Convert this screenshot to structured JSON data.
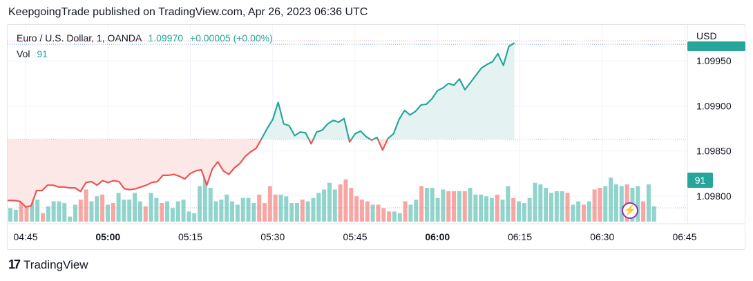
{
  "header": {
    "text": "KeepgoingTrade published on TradingView.com, Apr 26, 2023 06:36 UTC"
  },
  "legend": {
    "symbol": "Euro / U.S. Dollar, 1, OANDA",
    "price": "1.09970",
    "change": "+0.00005 (+0.00%)",
    "vol_label": "Vol",
    "vol_value": "91"
  },
  "axis": {
    "currency": "USD",
    "vol_tag": "91"
  },
  "footer": {
    "brand": "TradingView"
  },
  "colors": {
    "up": "#26a69a",
    "down": "#ef5350",
    "vol_up": "#90d4cc",
    "vol_down": "#f7a6a4",
    "up_fill": "#e4f3f1",
    "down_fill": "#fde8e8"
  },
  "chart_data": {
    "type": "line",
    "title": "",
    "ylabel": "",
    "ylim": [
      1.0977,
      1.0999
    ],
    "baseline": 1.09863,
    "y_ticks": [
      "1.09950",
      "1.09900",
      "1.09850",
      "1.09800"
    ],
    "x_ticks": [
      {
        "label": "04:45",
        "bold": false,
        "m": 0
      },
      {
        "label": "05:00",
        "bold": true,
        "m": 15
      },
      {
        "label": "05:15",
        "bold": false,
        "m": 30
      },
      {
        "label": "05:30",
        "bold": false,
        "m": 45
      },
      {
        "label": "05:45",
        "bold": false,
        "m": 60
      },
      {
        "label": "06:00",
        "bold": true,
        "m": 75
      },
      {
        "label": "06:15",
        "bold": false,
        "m": 90
      },
      {
        "label": "06:30",
        "bold": false,
        "m": 105
      },
      {
        "label": "06:45",
        "bold": false,
        "m": 120
      }
    ],
    "price_start_minute": -2,
    "price": [
      1.09795,
      1.09794,
      1.09788,
      1.09789,
      1.09806,
      1.09806,
      1.09812,
      1.09812,
      1.0981,
      1.0981,
      1.09809,
      1.09809,
      1.09805,
      1.09815,
      1.09816,
      1.09812,
      1.09817,
      1.09815,
      1.09817,
      1.09816,
      1.09808,
      1.09807,
      1.09808,
      1.0981,
      1.09812,
      1.09815,
      1.09816,
      1.09823,
      1.09823,
      1.09824,
      1.09822,
      1.09819,
      1.09825,
      1.09828,
      1.09829,
      1.09812,
      1.0983,
      1.09838,
      1.09828,
      1.09824,
      1.09831,
      1.09836,
      1.09844,
      1.09849,
      1.09853,
      1.09864,
      1.09875,
      1.09885,
      1.09904,
      1.0988,
      1.09878,
      1.09867,
      1.09871,
      1.0987,
      1.09858,
      1.09871,
      1.09873,
      1.0988,
      1.09884,
      1.09882,
      1.09886,
      1.0986,
      1.09869,
      1.09872,
      1.09866,
      1.09862,
      1.09865,
      1.09851,
      1.09864,
      1.09869,
      1.09885,
      1.09895,
      1.0989,
      1.09894,
      1.09901,
      1.09902,
      1.09908,
      1.09917,
      1.0992,
      1.09925,
      1.09923,
      1.0993,
      1.09918,
      1.09926,
      1.09934,
      1.09942,
      1.09946,
      1.09949,
      1.09958,
      1.09945,
      1.09966,
      1.0997
    ],
    "volume_max": 30,
    "volume": [
      {
        "v": 8,
        "up": true
      },
      {
        "v": 7,
        "up": true
      },
      {
        "v": 12,
        "up": false
      },
      {
        "v": 13,
        "up": false
      },
      {
        "v": 12,
        "up": true
      },
      {
        "v": 13,
        "up": true
      },
      {
        "v": 5,
        "up": false
      },
      {
        "v": 9,
        "up": true
      },
      {
        "v": 12,
        "up": true
      },
      {
        "v": 12,
        "up": true
      },
      {
        "v": 11,
        "up": true
      },
      {
        "v": 3,
        "up": true
      },
      {
        "v": 10,
        "up": true
      },
      {
        "v": 13,
        "up": false
      },
      {
        "v": 19,
        "up": false
      },
      {
        "v": 12,
        "up": true
      },
      {
        "v": 15,
        "up": true
      },
      {
        "v": 16,
        "up": false
      },
      {
        "v": 10,
        "up": true
      },
      {
        "v": 11,
        "up": false
      },
      {
        "v": 17,
        "up": true
      },
      {
        "v": 13,
        "up": true
      },
      {
        "v": 13,
        "up": true
      },
      {
        "v": 17,
        "up": true
      },
      {
        "v": 12,
        "up": true
      },
      {
        "v": 9,
        "up": false
      },
      {
        "v": 17,
        "up": true
      },
      {
        "v": 14,
        "up": true
      },
      {
        "v": 11,
        "up": false
      },
      {
        "v": 12,
        "up": true
      },
      {
        "v": 8,
        "up": true
      },
      {
        "v": 12,
        "up": true
      },
      {
        "v": 13,
        "up": true
      },
      {
        "v": 6,
        "up": true
      },
      {
        "v": 5,
        "up": true
      },
      {
        "v": 21,
        "up": true
      },
      {
        "v": 26,
        "up": true
      },
      {
        "v": 20,
        "up": true
      },
      {
        "v": 12,
        "up": true
      },
      {
        "v": 13,
        "up": true
      },
      {
        "v": 16,
        "up": true
      },
      {
        "v": 12,
        "up": true
      },
      {
        "v": 10,
        "up": true
      },
      {
        "v": 14,
        "up": true
      },
      {
        "v": 14,
        "up": true
      },
      {
        "v": 11,
        "up": true
      },
      {
        "v": 16,
        "up": false
      },
      {
        "v": 11,
        "up": false
      },
      {
        "v": 21,
        "up": false
      },
      {
        "v": 16,
        "up": false
      },
      {
        "v": 16,
        "up": true
      },
      {
        "v": 15,
        "up": true
      },
      {
        "v": 11,
        "up": true
      },
      {
        "v": 11,
        "up": true
      },
      {
        "v": 13,
        "up": false
      },
      {
        "v": 12,
        "up": true
      },
      {
        "v": 14,
        "up": true
      },
      {
        "v": 17,
        "up": true
      },
      {
        "v": 19,
        "up": true
      },
      {
        "v": 23,
        "up": true
      },
      {
        "v": 19,
        "up": true
      },
      {
        "v": 22,
        "up": false
      },
      {
        "v": 25,
        "up": false
      },
      {
        "v": 20,
        "up": false
      },
      {
        "v": 15,
        "up": false
      },
      {
        "v": 13,
        "up": false
      },
      {
        "v": 12,
        "up": false
      },
      {
        "v": 10,
        "up": true
      },
      {
        "v": 10,
        "up": false
      },
      {
        "v": 8,
        "up": false
      },
      {
        "v": 6,
        "up": false
      },
      {
        "v": 6,
        "up": true
      },
      {
        "v": 5,
        "up": true
      },
      {
        "v": 12,
        "up": false
      },
      {
        "v": 10,
        "up": true
      },
      {
        "v": 13,
        "up": true
      },
      {
        "v": 21,
        "up": false
      },
      {
        "v": 20,
        "up": true
      },
      {
        "v": 20,
        "up": true
      },
      {
        "v": 14,
        "up": true
      },
      {
        "v": 19,
        "up": true
      },
      {
        "v": 18,
        "up": false
      },
      {
        "v": 18,
        "up": false
      },
      {
        "v": 18,
        "up": true
      },
      {
        "v": 18,
        "up": false
      },
      {
        "v": 20,
        "up": true
      },
      {
        "v": 16,
        "up": true
      },
      {
        "v": 16,
        "up": true
      },
      {
        "v": 15,
        "up": true
      },
      {
        "v": 14,
        "up": true
      },
      {
        "v": 16,
        "up": false
      },
      {
        "v": 13,
        "up": true
      },
      {
        "v": 21,
        "up": true
      },
      {
        "v": 14,
        "up": false
      },
      {
        "v": 12,
        "up": true
      },
      {
        "v": 11,
        "up": true
      },
      {
        "v": 14,
        "up": true
      },
      {
        "v": 23,
        "up": true
      },
      {
        "v": 22,
        "up": true
      },
      {
        "v": 20,
        "up": true
      },
      {
        "v": 17,
        "up": true
      },
      {
        "v": 18,
        "up": true
      },
      {
        "v": 18,
        "up": true
      },
      {
        "v": 17,
        "up": false
      },
      {
        "v": 10,
        "up": true
      },
      {
        "v": 12,
        "up": true
      },
      {
        "v": 10,
        "up": false
      },
      {
        "v": 12,
        "up": true
      },
      {
        "v": 19,
        "up": false
      },
      {
        "v": 20,
        "up": false
      },
      {
        "v": 21,
        "up": true
      },
      {
        "v": 26,
        "up": true
      },
      {
        "v": 22,
        "up": true
      },
      {
        "v": 21,
        "up": true
      },
      {
        "v": 22,
        "up": false
      },
      {
        "v": 20,
        "up": true
      },
      {
        "v": 21,
        "up": true
      },
      {
        "v": 12,
        "up": false
      },
      {
        "v": 22,
        "up": true
      },
      {
        "v": 9,
        "up": true
      }
    ]
  }
}
